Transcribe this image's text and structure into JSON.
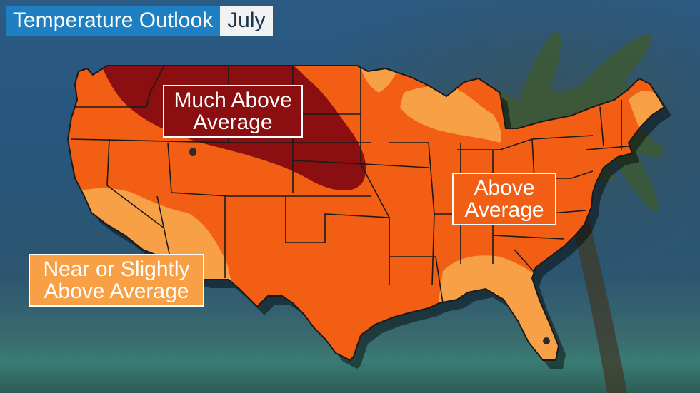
{
  "header": {
    "title": "Temperature Outlook",
    "month": "July"
  },
  "legend_labels": {
    "much_above": [
      "Much Above",
      "Average"
    ],
    "above": [
      "Above",
      "Average"
    ],
    "near": [
      "Near or Slightly",
      "Above Average"
    ]
  },
  "colors": {
    "title_bar": "#1f7fc3",
    "month_bar": "#f2f2f2",
    "much_above_average": "#8b0f10",
    "above_average": "#f25e14",
    "near_or_slightly_above": "#f8a046",
    "state_borders": "#1a1a1a"
  },
  "icons": [
    "palm-tree-icon"
  ]
}
